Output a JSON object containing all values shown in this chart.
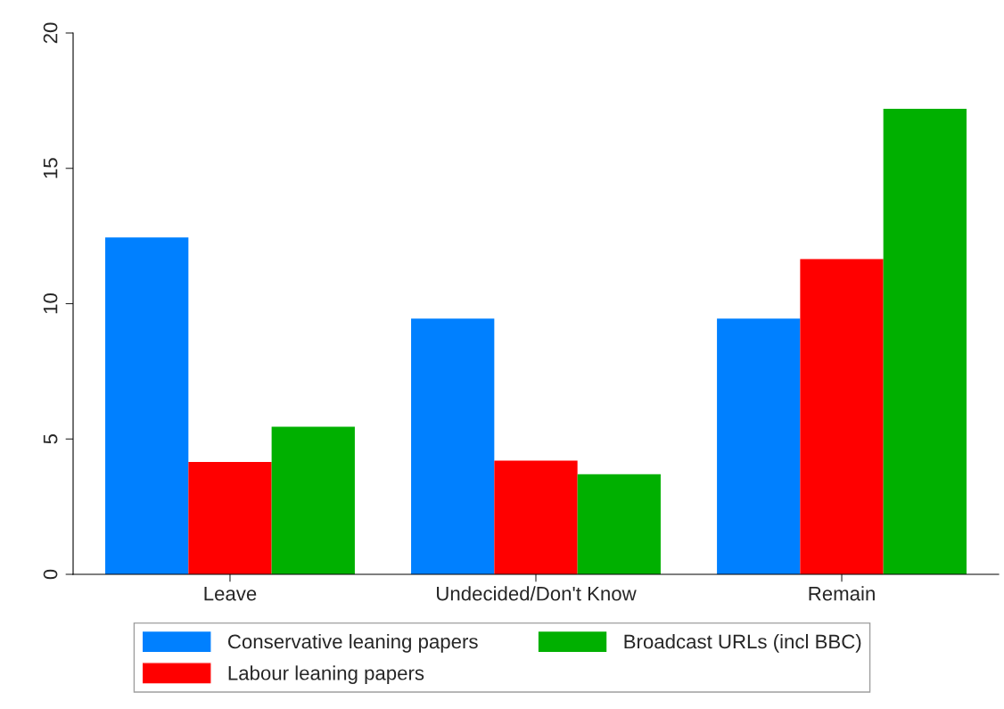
{
  "chart_data": {
    "type": "bar",
    "categories": [
      "Leave",
      "Undecided/Don't Know",
      "Remain"
    ],
    "series": [
      {
        "name": "Conservative leaning papers",
        "color": "#0080ff",
        "values": [
          12.45,
          9.45,
          9.45
        ]
      },
      {
        "name": "Labour leaning papers",
        "color": "#ff0000",
        "values": [
          4.15,
          4.2,
          11.65
        ]
      },
      {
        "name": "Broadcast URLs (incl BBC)",
        "color": "#00b000",
        "values": [
          5.45,
          3.7,
          17.2
        ]
      }
    ],
    "ylim": [
      0,
      20
    ],
    "yticks": [
      0,
      5,
      10,
      15,
      20
    ],
    "grid": false,
    "legend": "bottom"
  }
}
